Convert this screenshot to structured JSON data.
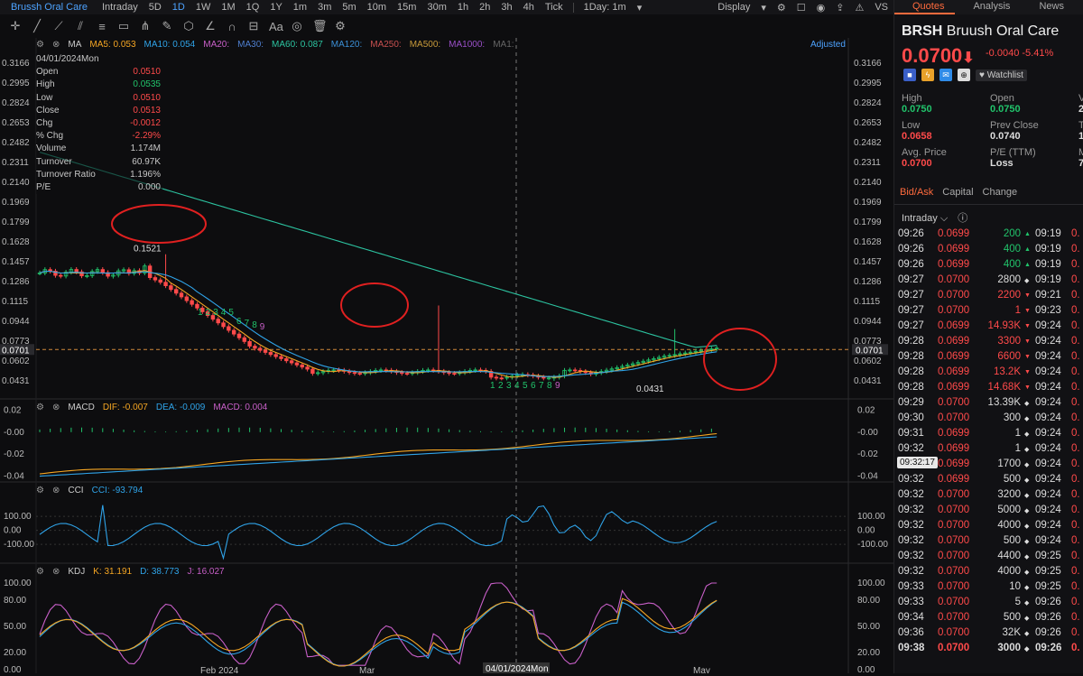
{
  "top": {
    "title": "Brussh Oral Care",
    "periods": [
      "Intraday",
      "5D",
      "1D",
      "1W",
      "1M",
      "1Q",
      "1Y",
      "1m",
      "3m",
      "5m",
      "10m",
      "15m",
      "30m",
      "1h",
      "2h",
      "3h",
      "4h",
      "Tick",
      "1Day: 1m"
    ],
    "active_period": "1D",
    "display": "Display"
  },
  "legend_ma": {
    "label": "MA",
    "ma5": "MA5: 0.053",
    "ma10": "MA10: 0.054",
    "ma20": "MA20:",
    "ma30": "MA30:",
    "ma60": "MA60: 0.087",
    "ma120": "MA120:",
    "ma250": "MA250:",
    "ma500": "MA500:",
    "ma1000": "MA1000:",
    "ma1": "MA1:",
    "adjusted": "Adjusted"
  },
  "ohlc": {
    "date": "04/01/2024Mon",
    "rows": [
      {
        "k": "Open",
        "v": "0.0510",
        "c": "#ff4a4a"
      },
      {
        "k": "High",
        "v": "0.0535",
        "c": "#21c46b"
      },
      {
        "k": "Low",
        "v": "0.0510",
        "c": "#ff4a4a"
      },
      {
        "k": "Close",
        "v": "0.0513",
        "c": "#ff4a4a"
      },
      {
        "k": "Chg",
        "v": "-0.0012",
        "c": "#ff4a4a"
      },
      {
        "k": "% Chg",
        "v": "-2.29%",
        "c": "#ff4a4a"
      },
      {
        "k": "Volume",
        "v": "1.174M",
        "c": "#c8c8c8"
      },
      {
        "k": "Turnover",
        "v": "60.97K",
        "c": "#c8c8c8"
      },
      {
        "k": "Turnover Ratio",
        "v": "1.196%",
        "c": "#c8c8c8"
      },
      {
        "k": "P/E",
        "v": "0.000",
        "c": "#c8c8c8"
      }
    ]
  },
  "price_axis": [
    "0.3166",
    "0.2995",
    "0.2824",
    "0.2653",
    "0.2482",
    "0.2311",
    "0.2140",
    "0.1969",
    "0.1799",
    "0.1628",
    "0.1457",
    "0.1286",
    "0.1115",
    "0.0944",
    "0.0773",
    "0.0602",
    "0.0431"
  ],
  "last_price_tag": "0.0701",
  "annotations": {
    "high_label": "0.1521",
    "low_label": "0.0431",
    "seq_a": [
      "1",
      "2",
      "3",
      "4",
      "5",
      "6",
      "7",
      "8",
      "9"
    ],
    "seq_b": [
      "1",
      "2",
      "3",
      "4",
      "5",
      "6",
      "7",
      "8",
      "9"
    ]
  },
  "macd": {
    "label": "MACD",
    "dif": "DIF: -0.007",
    "dea": "DEA: -0.009",
    "macd": "MACD: 0.004",
    "axis": [
      "0.02",
      "-0.00",
      "-0.02",
      "-0.04"
    ]
  },
  "cci": {
    "label": "CCI",
    "value": "CCI: -93.794",
    "axis": [
      "100.00",
      "0.00",
      "-100.00"
    ]
  },
  "kdj": {
    "label": "KDJ",
    "k": "K: 31.191",
    "d": "D: 38.773",
    "j": "J: 16.027",
    "axis": [
      "100.00",
      "80.00",
      "50.00",
      "20.00",
      "0.00"
    ]
  },
  "date_axis": {
    "feb": "Feb 2024",
    "mar": "Mar",
    "cursor": "04/01/2024Mon",
    "may": "May"
  },
  "quote": {
    "tabs": [
      "Quotes",
      "Analysis",
      "News"
    ],
    "symbol": "BRSH",
    "name": "Bruush Oral Care",
    "price": "0.0700",
    "change": "-0.0040",
    "change_pct": "-5.41%",
    "watchlist": "Watchlist",
    "stats": [
      {
        "lbl": "High",
        "val": "0.0750",
        "c": "#21c46b"
      },
      {
        "lbl": "Open",
        "val": "0.0750",
        "c": "#21c46b"
      },
      {
        "lbl": "Vo",
        "val": "2.6",
        "c": "#ddd"
      },
      {
        "lbl": "Low",
        "val": "0.0658",
        "c": "#ff4a4a"
      },
      {
        "lbl": "Prev Close",
        "val": "0.0740",
        "c": "#ddd"
      },
      {
        "lbl": "Tu",
        "val": "18",
        "c": "#ddd"
      },
      {
        "lbl": "Avg. Price",
        "val": "0.0700",
        "c": "#ff4a4a"
      },
      {
        "lbl": "P/E (TTM)",
        "val": "Loss",
        "c": "#ddd"
      },
      {
        "lbl": "Ma",
        "val": "7.0",
        "c": "#ddd"
      }
    ],
    "subtabs": [
      "Bid/Ask",
      "Capital",
      "Change"
    ],
    "intraday": "Intraday",
    "tooltip": "09:32:17"
  },
  "ticks": [
    [
      "09:26",
      "0.0699",
      "200",
      "up",
      "09:19",
      "0."
    ],
    [
      "09:26",
      "0.0699",
      "400",
      "up",
      "09:19",
      "0."
    ],
    [
      "09:26",
      "0.0699",
      "400",
      "up",
      "09:19",
      "0."
    ],
    [
      "09:27",
      "0.0700",
      "2800",
      "wh",
      "09:19",
      "0."
    ],
    [
      "09:27",
      "0.0700",
      "2200",
      "dn",
      "09:21",
      "0."
    ],
    [
      "09:27",
      "0.0700",
      "1",
      "dn",
      "09:23",
      "0."
    ],
    [
      "09:27",
      "0.0699",
      "14.93K",
      "dn",
      "09:24",
      "0."
    ],
    [
      "09:28",
      "0.0699",
      "3300",
      "dn",
      "09:24",
      "0."
    ],
    [
      "09:28",
      "0.0699",
      "6600",
      "dn",
      "09:24",
      "0."
    ],
    [
      "09:28",
      "0.0699",
      "13.2K",
      "dn",
      "09:24",
      "0."
    ],
    [
      "09:28",
      "0.0699",
      "14.68K",
      "dn",
      "09:24",
      "0."
    ],
    [
      "09:29",
      "0.0700",
      "13.39K",
      "wh",
      "09:24",
      "0."
    ],
    [
      "09:30",
      "0.0700",
      "300",
      "wh",
      "09:24",
      "0."
    ],
    [
      "09:31",
      "0.0699",
      "1",
      "wh",
      "09:24",
      "0."
    ],
    [
      "09:32",
      "0.0699",
      "1",
      "wh",
      "09:24",
      "0."
    ],
    [
      "09:32",
      "0.0699",
      "1700",
      "wh",
      "09:24",
      "0."
    ],
    [
      "09:32",
      "0.0699",
      "500",
      "wh",
      "09:24",
      "0."
    ],
    [
      "09:32",
      "0.0700",
      "3200",
      "wh",
      "09:24",
      "0."
    ],
    [
      "09:32",
      "0.0700",
      "5000",
      "wh",
      "09:24",
      "0."
    ],
    [
      "09:32",
      "0.0700",
      "4000",
      "wh",
      "09:24",
      "0."
    ],
    [
      "09:32",
      "0.0700",
      "500",
      "wh",
      "09:24",
      "0."
    ],
    [
      "09:32",
      "0.0700",
      "4400",
      "wh",
      "09:25",
      "0."
    ],
    [
      "09:32",
      "0.0700",
      "4000",
      "wh",
      "09:25",
      "0."
    ],
    [
      "09:33",
      "0.0700",
      "10",
      "wh",
      "09:25",
      "0."
    ],
    [
      "09:33",
      "0.0700",
      "5",
      "wh",
      "09:26",
      "0."
    ],
    [
      "09:34",
      "0.0700",
      "500",
      "wh",
      "09:26",
      "0."
    ],
    [
      "09:36",
      "0.0700",
      "32K",
      "wh",
      "09:26",
      "0."
    ],
    [
      "09:38",
      "0.0700",
      "3000",
      "wh",
      "09:26",
      "0."
    ]
  ],
  "colors": {
    "up": "#21c46b",
    "down": "#ff4a4a",
    "accent": "#ff6b3d",
    "link": "#4da3ff",
    "ma5": "#f5a623",
    "ma10": "#2fa3e8",
    "ma60": "#2cc3a0",
    "circle": "#e02020"
  }
}
